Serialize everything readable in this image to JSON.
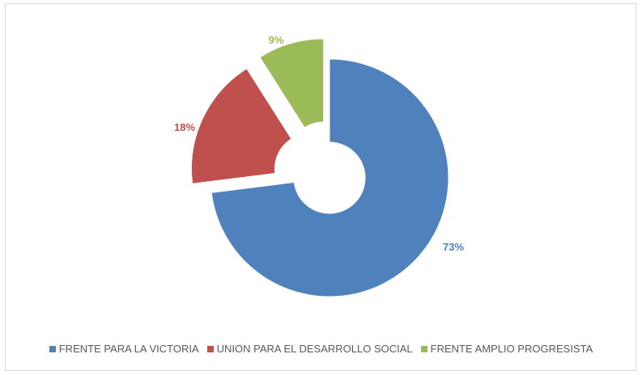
{
  "chart_data": {
    "type": "pie",
    "style": "exploded doughnut",
    "categories": [
      "FRENTE PARA LA VICTORIA",
      "UNION PARA EL DESARROLLO SOCIAL",
      "FRENTE AMPLIO PROGRESISTA"
    ],
    "values": [
      73,
      18,
      9
    ],
    "labels": [
      "73%",
      "18%",
      "9%"
    ],
    "colors": [
      "#4f81bd",
      "#c0504d",
      "#9bbb59"
    ],
    "legend_position": "bottom"
  }
}
